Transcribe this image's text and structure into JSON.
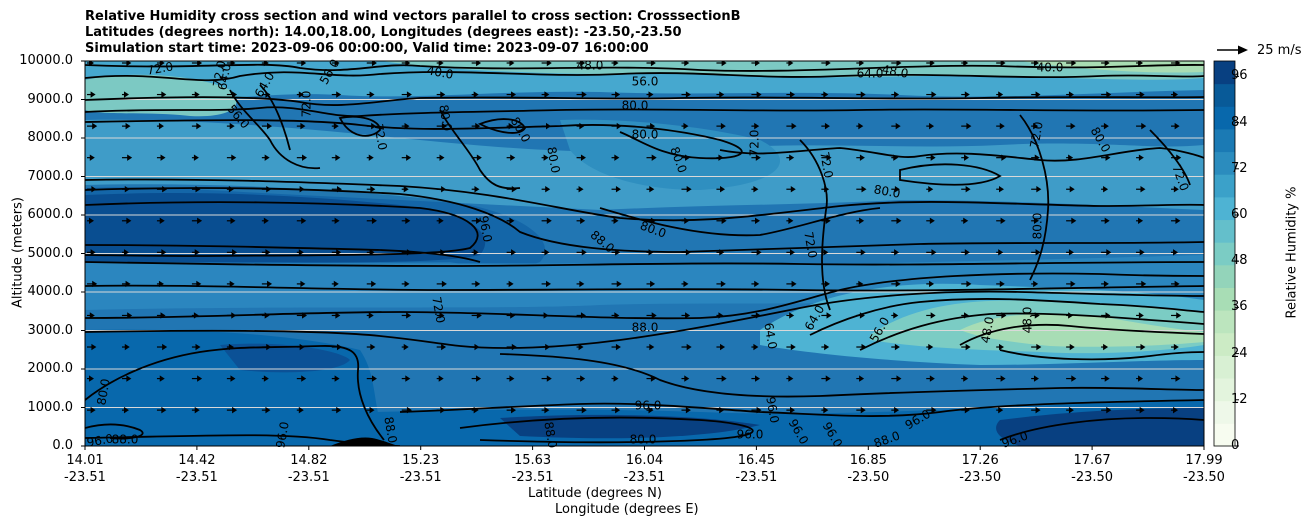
{
  "titles": [
    "Relative Humidity cross section and wind vectors parallel to cross section: CrosssectionB",
    "Latitudes (degrees north): 14.00,18.00, Longitudes (degrees east): -23.50,-23.50",
    "Simulation start time: 2023-09-06 00:00:00, Valid time: 2023-09-07 16:00:00"
  ],
  "chart_data": {
    "type": "heatmap",
    "title": "Relative Humidity cross section and wind vectors parallel to cross section: CrosssectionB",
    "ylabel": "Altitude (meters)",
    "xlabel_lat": "Latitude (degrees N)",
    "xlabel_lon": "Longitude (degrees E)",
    "ylim": [
      0,
      10000
    ],
    "y_ticks": [
      "0.0",
      "1000.0",
      "2000.0",
      "3000.0",
      "4000.0",
      "5000.0",
      "6000.0",
      "7000.0",
      "8000.0",
      "9000.0",
      "10000.0"
    ],
    "x_ticks": [
      {
        "lat": "14.01",
        "lon": "-23.51"
      },
      {
        "lat": "14.42",
        "lon": "-23.51"
      },
      {
        "lat": "14.82",
        "lon": "-23.51"
      },
      {
        "lat": "15.23",
        "lon": "-23.51"
      },
      {
        "lat": "15.63",
        "lon": "-23.51"
      },
      {
        "lat": "16.04",
        "lon": "-23.51"
      },
      {
        "lat": "16.45",
        "lon": "-23.51"
      },
      {
        "lat": "16.85",
        "lon": "-23.50"
      },
      {
        "lat": "17.26",
        "lon": "-23.50"
      },
      {
        "lat": "17.67",
        "lon": "-23.50"
      },
      {
        "lat": "17.99",
        "lon": "-23.50"
      }
    ],
    "colorbar": {
      "label": "Relative Humidity %",
      "range": [
        0,
        100
      ],
      "ticks": [
        "0",
        "12",
        "24",
        "36",
        "48",
        "60",
        "72",
        "84",
        "96"
      ],
      "colormap": "GnBu"
    },
    "quiver_key": "25 m/s",
    "contour_labels": [
      "96.0",
      "88.0",
      "80.0",
      "72.0",
      "64.0",
      "56.0",
      "48.0",
      "40.0",
      "72.0",
      "64.0",
      "56.0",
      "80.0",
      "80.0",
      "80.0",
      "72.0",
      "80.0",
      "72.0",
      "80.0",
      "80.0",
      "72.0",
      "80.0",
      "64.0",
      "56.0",
      "48.0",
      "40.0",
      "96.0",
      "88.0",
      "80.0",
      "80.0",
      "72.0",
      "80.0",
      "72.0",
      "72.0",
      "72.0",
      "64.0",
      "64.0",
      "56.0",
      "48.0",
      "48.0",
      "72.0",
      "88.0",
      "96.0",
      "80.0",
      "96.0",
      "96.0",
      "96.0",
      "96.0",
      "88.0",
      "96.0",
      "96.0",
      "88.0",
      "88.0",
      "96.0"
    ]
  }
}
